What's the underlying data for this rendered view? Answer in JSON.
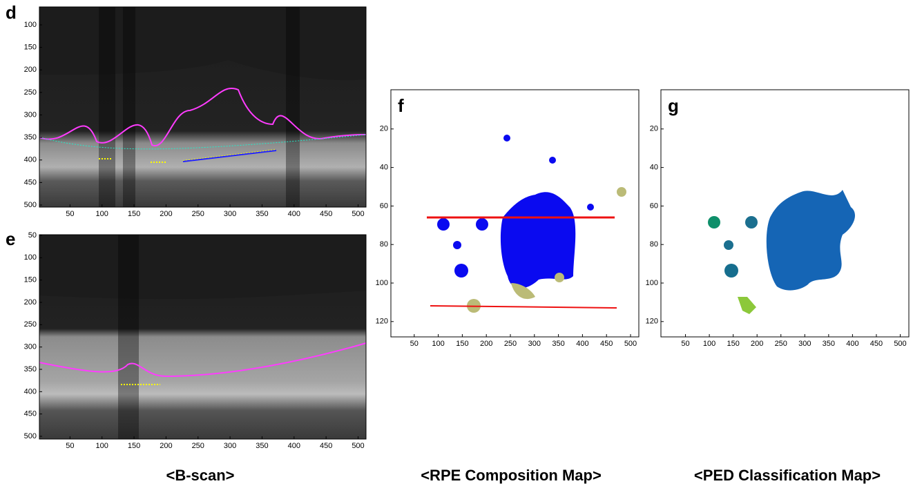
{
  "panels": [
    {
      "label": "d",
      "xticks": [
        50,
        100,
        150,
        200,
        250,
        300,
        350,
        400,
        450,
        500
      ],
      "yticks": [
        100,
        150,
        200,
        250,
        300,
        350,
        400,
        450,
        500
      ]
    },
    {
      "label": "e",
      "xticks": [
        50,
        100,
        150,
        200,
        250,
        300,
        350,
        400,
        450,
        500
      ],
      "yticks": [
        50,
        100,
        150,
        200,
        250,
        300,
        350,
        400,
        450,
        500
      ]
    },
    {
      "label": "f",
      "xticks": [
        50,
        100,
        150,
        200,
        250,
        300,
        350,
        400,
        450,
        500
      ],
      "yticks": [
        20,
        40,
        60,
        80,
        100,
        120
      ]
    },
    {
      "label": "g",
      "xticks": [
        50,
        100,
        150,
        200,
        250,
        300,
        350,
        400,
        450,
        500
      ],
      "yticks": [
        20,
        40,
        60,
        80,
        100,
        120
      ]
    }
  ],
  "captions": [
    "<B-scan>",
    "<RPE Composition Map>",
    "<PED Classification Map>"
  ]
}
